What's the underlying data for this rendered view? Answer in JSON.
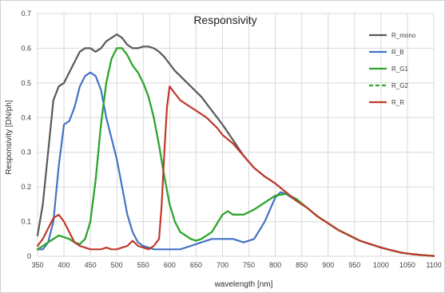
{
  "chart_data": {
    "type": "line",
    "title": "Responsivity",
    "xlabel": "wavelength [nm]",
    "ylabel": "Responsivity [DN/ph]",
    "xlim": [
      350,
      1100
    ],
    "ylim": [
      0,
      0.7
    ],
    "xticks": [
      350,
      400,
      450,
      500,
      550,
      600,
      650,
      700,
      750,
      800,
      850,
      900,
      950,
      1000,
      1050,
      1100
    ],
    "yticks": [
      0,
      0.1,
      0.2,
      0.3,
      0.4,
      0.5,
      0.6,
      0.7
    ],
    "xtick_labels": [
      "350",
      "400",
      "450",
      "500",
      "550",
      "600",
      "650",
      "700",
      "750",
      "800",
      "850",
      "900",
      "950",
      "1000",
      "1050",
      "1100"
    ],
    "ytick_labels": [
      "0",
      "0.1",
      "0.2",
      "0.3",
      "0.4",
      "0.5",
      "0.6",
      "0.7"
    ],
    "grid": true,
    "legend": "top-right",
    "series": [
      {
        "name": "R_mono",
        "color": "#595959",
        "dash": false,
        "x": [
          350,
          360,
          370,
          380,
          390,
          400,
          410,
          420,
          430,
          440,
          450,
          460,
          470,
          480,
          490,
          500,
          510,
          520,
          530,
          540,
          550,
          560,
          570,
          580,
          590,
          600,
          610,
          620,
          630,
          640,
          650,
          660,
          670,
          680,
          690,
          700,
          720,
          740,
          760,
          780,
          800,
          820,
          840,
          860,
          880,
          900,
          920,
          940,
          960,
          980,
          1000,
          1020,
          1040,
          1060,
          1080,
          1100
        ],
        "y": [
          0.06,
          0.15,
          0.3,
          0.45,
          0.49,
          0.5,
          0.53,
          0.56,
          0.59,
          0.6,
          0.6,
          0.59,
          0.6,
          0.62,
          0.63,
          0.64,
          0.63,
          0.61,
          0.6,
          0.6,
          0.605,
          0.605,
          0.6,
          0.59,
          0.575,
          0.555,
          0.535,
          0.52,
          0.505,
          0.49,
          0.475,
          0.46,
          0.44,
          0.42,
          0.4,
          0.38,
          0.335,
          0.29,
          0.255,
          0.23,
          0.21,
          0.185,
          0.16,
          0.14,
          0.115,
          0.095,
          0.075,
          0.06,
          0.045,
          0.035,
          0.025,
          0.017,
          0.01,
          0.006,
          0.003,
          0.001
        ]
      },
      {
        "name": "R_B",
        "color": "#4472c4",
        "dash": false,
        "x": [
          350,
          360,
          370,
          380,
          390,
          400,
          410,
          420,
          430,
          440,
          450,
          460,
          470,
          480,
          490,
          500,
          510,
          520,
          530,
          540,
          550,
          560,
          570,
          580,
          590,
          600,
          620,
          640,
          660,
          680,
          700,
          720,
          740,
          760,
          780,
          800,
          810,
          820,
          840,
          860,
          880,
          900,
          920,
          940,
          960,
          980,
          1000,
          1020,
          1040,
          1060,
          1080,
          1100
        ],
        "y": [
          0.02,
          0.02,
          0.04,
          0.1,
          0.26,
          0.38,
          0.39,
          0.43,
          0.49,
          0.52,
          0.53,
          0.52,
          0.48,
          0.4,
          0.34,
          0.28,
          0.2,
          0.12,
          0.07,
          0.04,
          0.03,
          0.025,
          0.02,
          0.02,
          0.02,
          0.02,
          0.02,
          0.03,
          0.04,
          0.05,
          0.05,
          0.05,
          0.04,
          0.05,
          0.1,
          0.17,
          0.185,
          0.18,
          0.16,
          0.14,
          0.115,
          0.095,
          0.075,
          0.06,
          0.045,
          0.035,
          0.025,
          0.017,
          0.01,
          0.006,
          0.003,
          0.001
        ]
      },
      {
        "name": "R_G1",
        "color": "#2fa62f",
        "dash": false,
        "x": [
          350,
          360,
          370,
          380,
          390,
          400,
          410,
          420,
          430,
          440,
          450,
          460,
          470,
          480,
          490,
          500,
          510,
          520,
          530,
          540,
          550,
          560,
          570,
          580,
          590,
          600,
          610,
          620,
          630,
          640,
          650,
          660,
          680,
          700,
          710,
          720,
          740,
          760,
          780,
          800,
          820,
          840,
          860,
          880,
          900,
          920,
          940,
          960,
          980,
          1000,
          1020,
          1040,
          1060,
          1080,
          1100
        ],
        "y": [
          0.02,
          0.03,
          0.04,
          0.05,
          0.06,
          0.055,
          0.05,
          0.04,
          0.035,
          0.05,
          0.1,
          0.22,
          0.38,
          0.5,
          0.57,
          0.6,
          0.6,
          0.58,
          0.55,
          0.53,
          0.5,
          0.46,
          0.4,
          0.32,
          0.23,
          0.15,
          0.1,
          0.07,
          0.06,
          0.05,
          0.045,
          0.05,
          0.07,
          0.12,
          0.13,
          0.12,
          0.12,
          0.135,
          0.155,
          0.175,
          0.18,
          0.165,
          0.14,
          0.115,
          0.095,
          0.075,
          0.06,
          0.045,
          0.035,
          0.025,
          0.017,
          0.01,
          0.006,
          0.003,
          0.001
        ]
      },
      {
        "name": "R_G2",
        "color": "#2fa62f",
        "dash": true,
        "x": [
          350,
          360,
          370,
          380,
          390,
          400,
          410,
          420,
          430,
          440,
          450,
          460,
          470,
          480,
          490,
          500,
          510,
          520,
          530,
          540,
          550,
          560,
          570,
          580,
          590,
          600,
          610,
          620,
          630,
          640,
          650,
          660,
          680,
          700,
          710,
          720,
          740,
          760,
          780,
          800,
          820,
          840,
          860,
          880,
          900,
          920,
          940,
          960,
          980,
          1000,
          1020,
          1040,
          1060,
          1080,
          1100
        ],
        "y": [
          0.02,
          0.03,
          0.04,
          0.05,
          0.06,
          0.055,
          0.05,
          0.04,
          0.035,
          0.05,
          0.1,
          0.22,
          0.38,
          0.5,
          0.57,
          0.6,
          0.6,
          0.58,
          0.55,
          0.53,
          0.5,
          0.46,
          0.4,
          0.32,
          0.23,
          0.15,
          0.1,
          0.07,
          0.06,
          0.05,
          0.045,
          0.05,
          0.07,
          0.12,
          0.13,
          0.12,
          0.12,
          0.135,
          0.155,
          0.175,
          0.18,
          0.165,
          0.14,
          0.115,
          0.095,
          0.075,
          0.06,
          0.045,
          0.035,
          0.025,
          0.017,
          0.01,
          0.006,
          0.003,
          0.001
        ]
      },
      {
        "name": "R_R",
        "color": "#c0392b",
        "dash": false,
        "x": [
          350,
          360,
          370,
          380,
          390,
          400,
          410,
          420,
          430,
          440,
          450,
          460,
          470,
          480,
          490,
          500,
          510,
          520,
          530,
          540,
          550,
          560,
          570,
          580,
          585,
          590,
          595,
          600,
          610,
          620,
          630,
          640,
          650,
          660,
          670,
          680,
          690,
          700,
          720,
          740,
          760,
          780,
          800,
          820,
          840,
          860,
          880,
          900,
          920,
          940,
          960,
          980,
          1000,
          1020,
          1040,
          1060,
          1080,
          1100
        ],
        "y": [
          0.03,
          0.05,
          0.08,
          0.11,
          0.12,
          0.1,
          0.07,
          0.04,
          0.03,
          0.025,
          0.02,
          0.02,
          0.02,
          0.025,
          0.02,
          0.02,
          0.025,
          0.03,
          0.045,
          0.03,
          0.025,
          0.02,
          0.03,
          0.05,
          0.15,
          0.3,
          0.43,
          0.49,
          0.47,
          0.45,
          0.44,
          0.43,
          0.42,
          0.41,
          0.4,
          0.385,
          0.37,
          0.35,
          0.325,
          0.29,
          0.255,
          0.23,
          0.21,
          0.185,
          0.16,
          0.14,
          0.115,
          0.095,
          0.075,
          0.06,
          0.045,
          0.035,
          0.025,
          0.017,
          0.01,
          0.006,
          0.003,
          0.001
        ]
      }
    ]
  }
}
